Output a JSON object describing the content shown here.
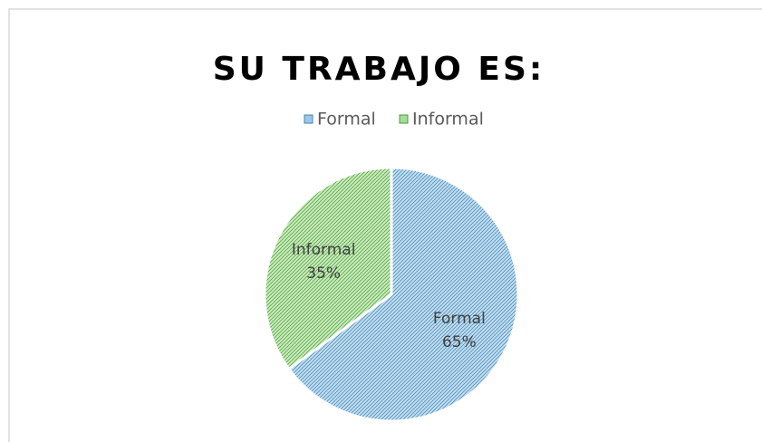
{
  "chart_data": {
    "type": "pie",
    "title": "SU TRABAJO ES:",
    "categories": [
      "Formal",
      "Informal"
    ],
    "values": [
      65,
      35
    ],
    "value_labels": [
      "65%",
      "35%"
    ],
    "colors": [
      "#9cc8e6",
      "#a6dc96"
    ],
    "legend": "top"
  }
}
